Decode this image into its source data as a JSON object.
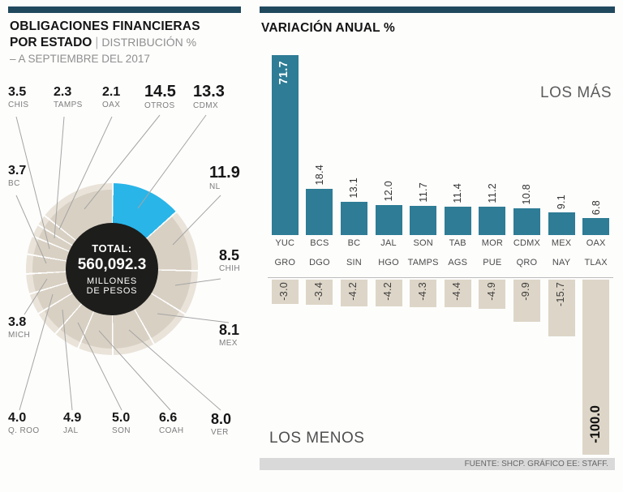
{
  "left_panel": {
    "title_line1": "OBLIGACIONES FINANCIERAS",
    "title_line2_bold": "POR ESTADO",
    "title_separator": "|",
    "title_line2_light": "DISTRIBUCIÓN %",
    "title_line3": "– A SEPTIEMBRE DEL 2017",
    "donut": {
      "total_label": "TOTAL:",
      "total_value": "560,092.3",
      "total_unit_line1": "MILLONES",
      "total_unit_line2": "DE PESOS"
    }
  },
  "right_panel": {
    "title": "VARIACIÓN ANUAL %",
    "label_top": "LOS MÁS",
    "label_bottom": "LOS MENOS"
  },
  "footer": {
    "source": "FUENTE: SHCP. GRÁFICO EE: STAFF."
  },
  "colors": {
    "header_bar": "#21495d",
    "bar_positive": "#2e7c95",
    "bar_negative": "#ddd5c7",
    "donut_base": "#d8d0c3",
    "donut_halo": "#e9e3d9",
    "donut_highlight": "#29b5e8",
    "center_circle": "#1d1d1b"
  },
  "chart_data": [
    {
      "type": "pie",
      "title": "OBLIGACIONES FINANCIERAS POR ESTADO — DISTRIBUCIÓN % A SEPTIEMBRE DEL 2017",
      "unit": "%",
      "total_label": "TOTAL: 560,092.3 MILLONES DE PESOS",
      "labels": [
        "CDMX",
        "NL",
        "CHIH",
        "MEX",
        "VER",
        "COAH",
        "SON",
        "JAL",
        "Q. ROO",
        "MICH",
        "BC",
        "CHIS",
        "TAMPS",
        "OAX",
        "OTROS"
      ],
      "values": [
        13.3,
        11.9,
        8.5,
        8.1,
        8.0,
        6.6,
        5.0,
        4.9,
        4.0,
        3.8,
        3.7,
        3.5,
        2.3,
        2.1,
        14.5
      ],
      "highlight": "CDMX"
    },
    {
      "type": "bar",
      "title": "VARIACIÓN ANUAL % — LOS MÁS",
      "categories": [
        "YUC",
        "BCS",
        "BC",
        "JAL",
        "SON",
        "TAB",
        "MOR",
        "CDMX",
        "MEX",
        "OAX"
      ],
      "values": [
        71.7,
        18.4,
        13.1,
        12.0,
        11.7,
        11.4,
        11.2,
        10.8,
        9.1,
        6.8
      ],
      "ylim": [
        0,
        71.7
      ],
      "grid": false,
      "legend": false
    },
    {
      "type": "bar",
      "title": "VARIACIÓN ANUAL % — LOS MENOS",
      "categories": [
        "GRO",
        "DGO",
        "SIN",
        "HGO",
        "TAMPS",
        "AGS",
        "PUE",
        "QRO",
        "NAY",
        "TLAX"
      ],
      "values": [
        -3.0,
        -3.4,
        -4.2,
        -4.2,
        -4.3,
        -4.4,
        -4.9,
        -9.9,
        -15.7,
        -100.0
      ],
      "ylim": [
        -100.0,
        0
      ],
      "grid": false,
      "legend": false
    }
  ]
}
